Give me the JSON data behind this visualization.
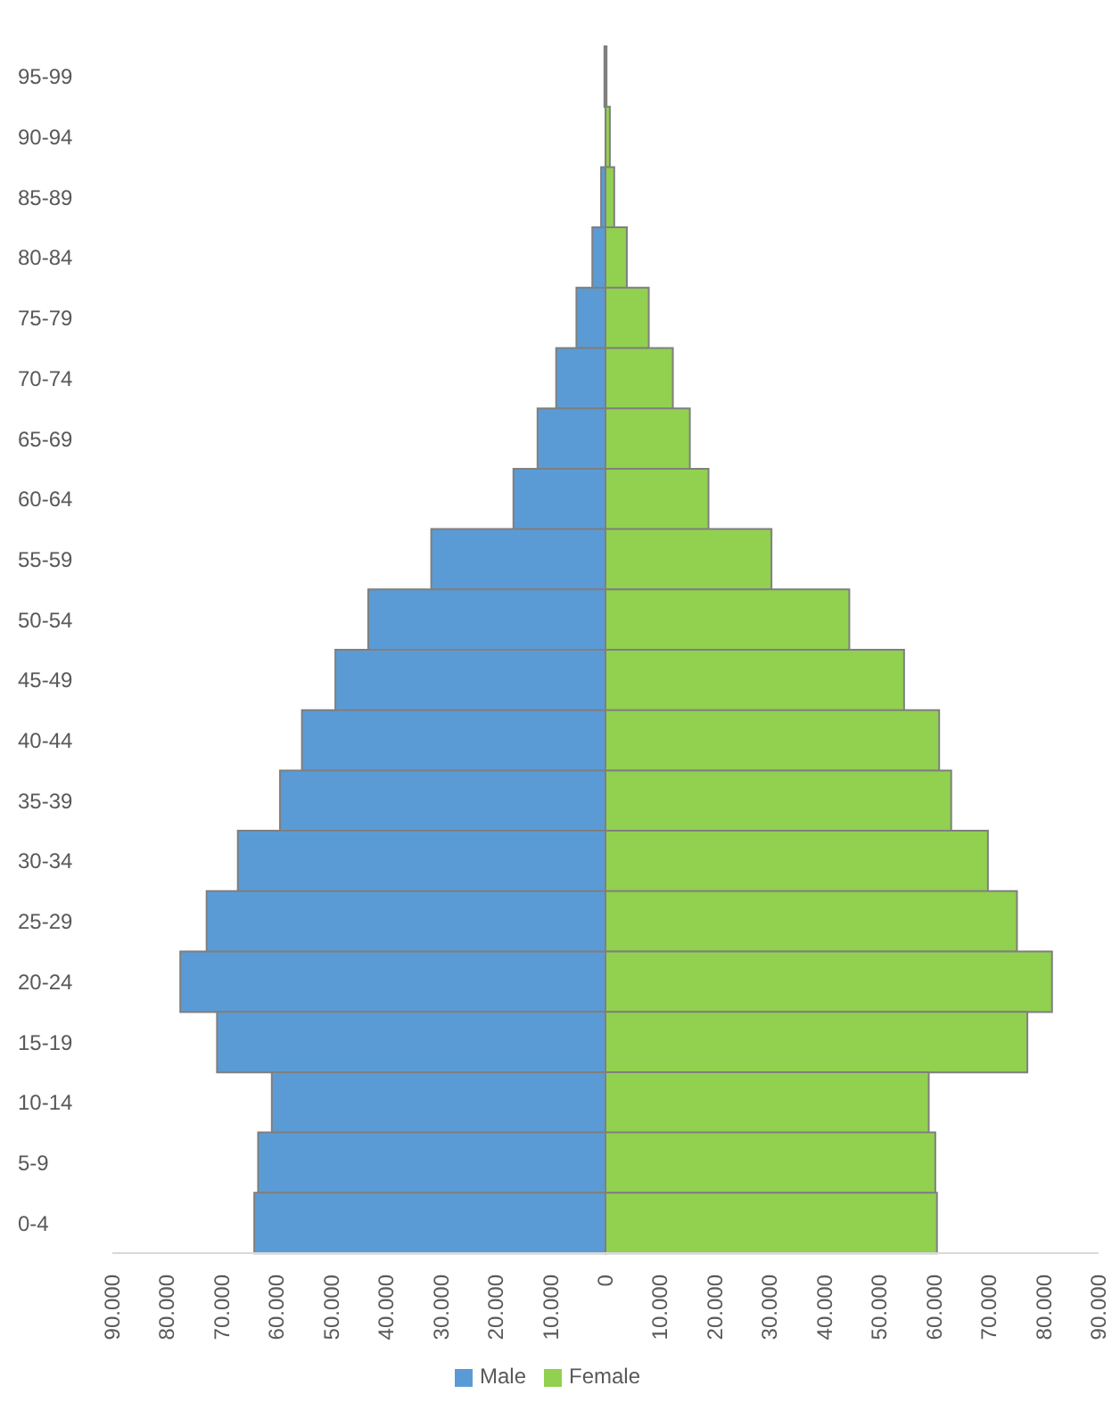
{
  "chart_data": {
    "type": "bar",
    "orientation": "horizontal",
    "stacked": true,
    "categories": [
      "95-99",
      "90-94",
      "85-89",
      "80-84",
      "75-79",
      "70-74",
      "65-69",
      "60-64",
      "55-59",
      "50-54",
      "45-49",
      "40-44",
      "35-39",
      "30-34",
      "25-29",
      "20-24",
      "15-19",
      "10-14",
      "5-9",
      "0-4"
    ],
    "series": [
      {
        "name": "Male",
        "color": "#5b9bd5",
        "values": [
          -200,
          null,
          -800,
          -2400,
          -5300,
          -9000,
          -12400,
          -16800,
          -31800,
          -43300,
          -49300,
          -55400,
          -59400,
          -67100,
          -72800,
          -77600,
          -70900,
          -60900,
          -63400,
          -64100
        ]
      },
      {
        "name": "Female",
        "color": "#92d050",
        "values": [
          200,
          800,
          1600,
          3900,
          7900,
          12300,
          15400,
          18800,
          30300,
          44500,
          54500,
          60900,
          63100,
          69800,
          75100,
          81500,
          77000,
          59000,
          60200,
          60500
        ]
      }
    ],
    "xlim": [
      -90000,
      90000
    ],
    "xticks": [
      {
        "value": -90000,
        "label": "90.000"
      },
      {
        "value": -80000,
        "label": "80.000"
      },
      {
        "value": -70000,
        "label": "70.000"
      },
      {
        "value": -60000,
        "label": "60.000"
      },
      {
        "value": -50000,
        "label": "50.000"
      },
      {
        "value": -40000,
        "label": "40.000"
      },
      {
        "value": -30000,
        "label": "30.000"
      },
      {
        "value": -20000,
        "label": "20.000"
      },
      {
        "value": -10000,
        "label": "10.000"
      },
      0,
      {
        "value": 10000,
        "label": "10.000"
      },
      {
        "value": 20000,
        "label": "20.000"
      },
      {
        "value": 30000,
        "label": "30.000"
      },
      {
        "value": 40000,
        "label": "40.000"
      },
      {
        "value": 50000,
        "label": "50.000"
      },
      {
        "value": 60000,
        "label": "60.000"
      },
      {
        "value": 70000,
        "label": "70.000"
      },
      {
        "value": 80000,
        "label": "80.000"
      },
      {
        "value": 90000,
        "label": "90.000"
      }
    ],
    "legend": "bottom"
  }
}
